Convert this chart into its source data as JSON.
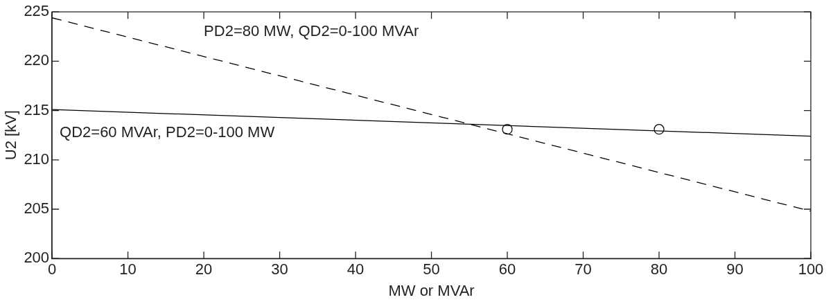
{
  "chart_data": {
    "type": "line",
    "xlabel": "MW or MVAr",
    "ylabel": "U2 [kV]",
    "xlim": [
      0,
      100
    ],
    "xticks": [
      0,
      10,
      20,
      30,
      40,
      50,
      60,
      70,
      80,
      90,
      100
    ],
    "ylim": [
      200,
      225
    ],
    "yticks": [
      200,
      205,
      210,
      215,
      220,
      225
    ],
    "grid": false,
    "legend": false,
    "series": [
      {
        "type": "line",
        "color": "#000000",
        "line_style": "solid",
        "marker": "none",
        "x": [
          0,
          100
        ],
        "values": [
          215.1,
          212.4
        ]
      },
      {
        "type": "line",
        "color": "#000000",
        "line_style": "dashed",
        "marker": "none",
        "x": [
          0,
          100
        ],
        "values": [
          224.4,
          204.8
        ]
      },
      {
        "type": "scatter",
        "color": "#000000",
        "marker": "circle",
        "x": [
          60,
          80
        ],
        "values": [
          213.1,
          213.1
        ]
      }
    ],
    "annotations": [
      "PD2=80 MW, QD2=0-100 MVAr",
      "QD2=60 MVAr, PD2=0-100 MW"
    ]
  }
}
